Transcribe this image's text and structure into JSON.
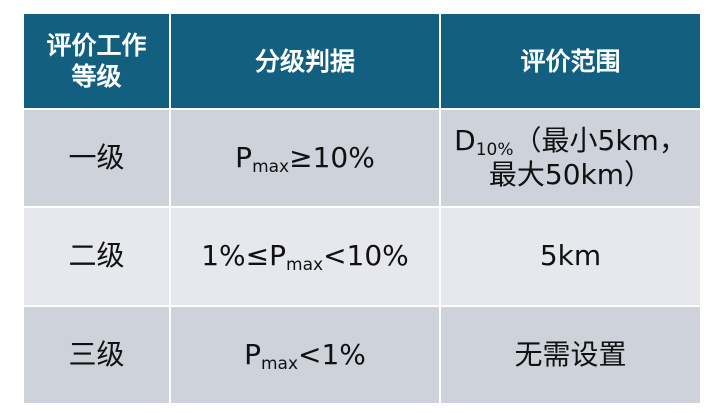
{
  "table": {
    "headers": {
      "col1_line1": "评价工作",
      "col1_line2": "等级",
      "col2": "分级判据",
      "col3": "评价范围"
    },
    "rows": [
      {
        "level": "一级",
        "criteria": {
          "before": "",
          "symbol": "P",
          "subscript": "max",
          "after": "≥10%"
        },
        "range": {
          "symbol": "D",
          "subscript": "10%",
          "line1_rest": "（最小5km，",
          "line2": "最大50km）"
        }
      },
      {
        "level": "二级",
        "criteria": {
          "before": "1%≤",
          "symbol": "P",
          "subscript": "max",
          "after": "<10%"
        },
        "range": {
          "text": "5km"
        }
      },
      {
        "level": "三级",
        "criteria": {
          "before": "",
          "symbol": "P",
          "subscript": "max",
          "after": "<1%"
        },
        "range": {
          "text": "无需设置"
        }
      }
    ]
  },
  "colors": {
    "header_bg": "#135f7f",
    "row_light": "#e6e8ee",
    "row_dark": "#cdd2db"
  }
}
